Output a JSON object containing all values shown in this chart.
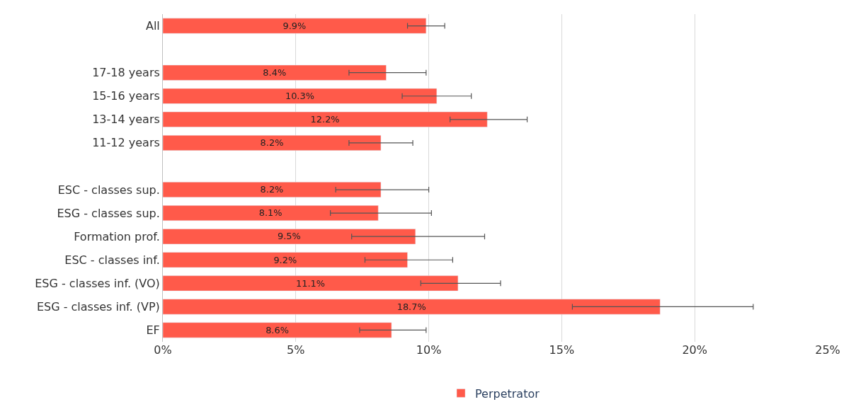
{
  "chart_data": {
    "type": "bar",
    "orientation": "horizontal",
    "categories": [
      "All",
      null,
      "17-18 years",
      "15-16 years",
      "13-14 years",
      "11-12 years",
      null,
      "ESC - classes sup.",
      "ESG - classes sup.",
      "Formation prof.",
      "ESC - classes inf.",
      "ESG - classes inf. (VO)",
      "ESG - classes inf. (VP)",
      "EF"
    ],
    "series": [
      {
        "name": "Perpetrator",
        "color": "#ff5a4a",
        "values": [
          9.9,
          null,
          8.4,
          10.3,
          12.2,
          8.2,
          null,
          8.2,
          8.1,
          9.5,
          9.2,
          11.1,
          18.7,
          8.6
        ],
        "value_labels": [
          "9.9%",
          null,
          "8.4%",
          "10.3%",
          "12.2%",
          "8.2%",
          null,
          "8.2%",
          "8.1%",
          "9.5%",
          "9.2%",
          "11.1%",
          "18.7%",
          "8.6%"
        ],
        "errors": [
          [
            9.2,
            10.6
          ],
          null,
          [
            7.0,
            9.9
          ],
          [
            9.0,
            11.6
          ],
          [
            10.8,
            13.7
          ],
          [
            7.0,
            9.4
          ],
          null,
          [
            6.5,
            10.0
          ],
          [
            6.3,
            10.1
          ],
          [
            7.1,
            12.1
          ],
          [
            7.6,
            10.9
          ],
          [
            9.7,
            12.7
          ],
          [
            15.4,
            22.2
          ],
          [
            7.4,
            9.9
          ]
        ]
      }
    ],
    "xlim": [
      0,
      25
    ],
    "xticks": [
      {
        "value": 0,
        "label": "0%"
      },
      {
        "value": 5,
        "label": "5%"
      },
      {
        "value": 10,
        "label": "10%"
      },
      {
        "value": 15,
        "label": "15%"
      },
      {
        "value": 20,
        "label": "20%"
      },
      {
        "value": 25,
        "label": "25%"
      }
    ],
    "grid": "x",
    "legend": "bottom"
  }
}
